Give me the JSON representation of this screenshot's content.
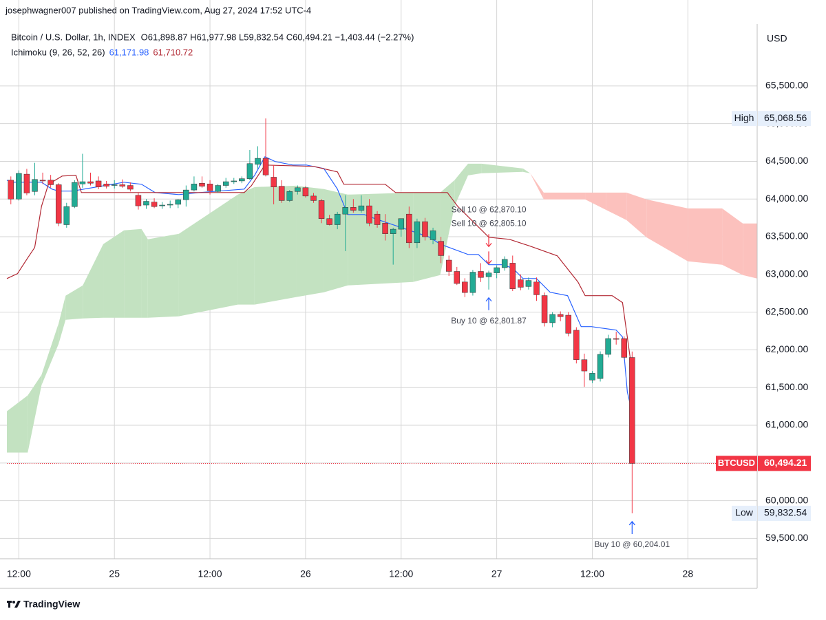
{
  "header": {
    "published": "josephwagner007 published on TradingView.com, Aug 27, 2024 17:52 UTC-4"
  },
  "chart_data": {
    "type": "candlestick",
    "title": "Bitcoin / U.S. Dollar, 1h, INDEX",
    "ohlc_legend": "O61,898.87 H61,977.98 L59,832.54 C60,494.21 −1,403.44 (−2.27%)",
    "currency": "USD",
    "symbol": "BTCUSD",
    "x": [
      -1,
      0,
      1,
      2,
      3,
      4,
      5,
      6,
      7,
      8,
      9,
      10,
      11,
      12,
      13,
      14,
      15,
      16,
      17,
      18,
      19,
      20,
      21,
      22,
      23,
      24,
      25,
      26,
      27,
      28,
      29,
      30,
      31,
      32,
      33,
      34,
      35,
      36,
      37,
      38,
      39,
      40,
      41,
      42,
      43,
      44,
      45,
      46,
      47,
      48,
      49,
      50,
      51,
      52,
      53,
      54,
      55,
      56,
      57,
      58,
      59,
      60,
      61,
      62,
      63,
      64,
      65,
      66,
      67,
      68,
      69,
      70,
      71,
      72,
      73,
      74,
      75,
      76,
      77
    ],
    "open": [
      64250,
      64000,
      64330,
      64100,
      64250,
      64250,
      64190,
      63660,
      63900,
      64200,
      64230,
      64240,
      64200,
      64180,
      64190,
      64180,
      64050,
      63920,
      63960,
      63910,
      63920,
      63930,
      63990,
      64120,
      64210,
      64200,
      64100,
      64180,
      64230,
      64240,
      64270,
      64460,
      64540,
      64290,
      64170,
      63980,
      64100,
      64150,
      64040,
      63980,
      63740,
      63660,
      63800,
      63890,
      63850,
      63910,
      63800,
      63680,
      63540,
      63600,
      63800,
      63420,
      63700,
      63460,
      63440,
      63190,
      63040,
      62900,
      62760,
      63040,
      62970,
      63020,
      63090,
      63150,
      62930,
      62840,
      62900,
      62720,
      62360,
      62470,
      62460,
      62260,
      61870,
      61600,
      61620,
      61940,
      62150,
      62150,
      61898.87
    ],
    "high": [
      64300,
      64380,
      64400,
      64480,
      64350,
      64320,
      64210,
      63950,
      64250,
      64600,
      64350,
      64300,
      64240,
      64250,
      64260,
      64220,
      64080,
      64000,
      64010,
      63960,
      63980,
      64000,
      64180,
      64300,
      64300,
      64250,
      64200,
      64280,
      64280,
      64300,
      64650,
      64700,
      65068.56,
      64450,
      64250,
      64120,
      64180,
      64170,
      64080,
      64000,
      63790,
      63830,
      64050,
      64000,
      64050,
      64000,
      63840,
      63800,
      63620,
      63740,
      63900,
      63740,
      63750,
      63620,
      63500,
      63250,
      63100,
      62950,
      63060,
      63150,
      63050,
      63120,
      63240,
      63250,
      63000,
      62960,
      62960,
      62760,
      62500,
      62510,
      62500,
      62300,
      61950,
      61720,
      61980,
      62200,
      62240,
      62180,
      61977.98
    ],
    "low": [
      63930,
      63980,
      64050,
      64050,
      64200,
      64150,
      63640,
      63620,
      63880,
      64150,
      64180,
      64130,
      64140,
      64140,
      64150,
      64100,
      63860,
      63870,
      63880,
      63870,
      63880,
      63880,
      63900,
      64100,
      64150,
      64060,
      64080,
      64150,
      64200,
      64210,
      64250,
      64400,
      64300,
      63930,
      63950,
      63960,
      64060,
      64020,
      63950,
      63680,
      63650,
      63600,
      63310,
      63820,
      63820,
      63640,
      63620,
      63450,
      63130,
      63500,
      63350,
      63350,
      63450,
      63400,
      63150,
      62980,
      62860,
      62700,
      62720,
      62900,
      62800,
      62950,
      63050,
      62780,
      62790,
      62800,
      62650,
      62310,
      62300,
      62380,
      62180,
      61820,
      61510,
      61560,
      61580,
      61900,
      62070,
      61880,
      59832.54
    ],
    "close": [
      64000,
      64340,
      64080,
      64260,
      64240,
      64190,
      63680,
      63900,
      64220,
      64230,
      64210,
      64160,
      64170,
      64190,
      64170,
      64130,
      63910,
      63970,
      63900,
      63920,
      63930,
      63990,
      64120,
      64200,
      64170,
      64110,
      64180,
      64230,
      64240,
      64270,
      64470,
      64540,
      64320,
      64160,
      63980,
      64100,
      64150,
      64040,
      63980,
      63740,
      63660,
      63800,
      63890,
      63850,
      63910,
      63680,
      63660,
      63540,
      63600,
      63740,
      63420,
      63700,
      63500,
      63580,
      63250,
      63040,
      62880,
      62760,
      63030,
      62960,
      63020,
      63090,
      63200,
      62810,
      62830,
      62920,
      62730,
      62360,
      62470,
      62440,
      62220,
      61870,
      61720,
      61690,
      61940,
      62150,
      62140,
      61900,
      60494.21
    ],
    "up_color": "#22ab94",
    "down_color": "#f23645",
    "last_price_label": "60,494.21",
    "high_label": "High",
    "high_value_label": "65,068.56",
    "low_label": "Low",
    "low_value_label": "59,832.54",
    "indicator": {
      "title": "Ichimoku (9, 26, 52, 26)",
      "lines": [
        {
          "color": "#2962ff",
          "last_label": "61,171.98",
          "x": [
            -1.5,
            -0.6,
            2.85,
            4.15,
            5.0,
            6.74,
            13.2,
            15.4,
            17.1,
            20.1,
            22.7,
            28.3,
            29.6,
            30.9,
            32.2,
            34.4,
            36.1,
            38.3,
            40.0,
            41.3,
            43.4,
            44.7,
            47.8,
            51.6,
            52.9,
            56.4,
            57.7,
            59.0,
            60.7,
            62.0,
            63.3,
            65.0,
            66.7,
            68.9,
            70.6,
            71.9,
            75.0,
            75.8,
            76.4,
            77
          ],
          "values": [
            64250,
            64223,
            64223,
            64132,
            64105,
            64105,
            64223,
            64196,
            64086,
            64059,
            64086,
            64132,
            64314,
            64561,
            64497,
            64451,
            64451,
            64405,
            64132,
            63794,
            63794,
            63740,
            63630,
            63493,
            63402,
            63265,
            63265,
            63129,
            63129,
            63083,
            62946,
            62946,
            62764,
            62718,
            62308,
            62308,
            62262,
            62171,
            61441,
            61171.98
          ]
        },
        {
          "color": "#b22833",
          "last_label": "61,710.72",
          "x": [
            -1.5,
            -0.17,
            1.12,
            1.99,
            2.85,
            3.71,
            5.44,
            7.17,
            7.86,
            28.3,
            29.2,
            30.9,
            37.0,
            40.0,
            40.8,
            46.0,
            47.3,
            53.8,
            55.1,
            59.0,
            61.6,
            64.2,
            67.6,
            70.2,
            71.1,
            74.5,
            75.8,
            77
          ],
          "values": [
            62946,
            63010,
            63220,
            63357,
            63904,
            64196,
            64305,
            64314,
            64086,
            64086,
            64177,
            64451,
            64433,
            64360,
            64196,
            64196,
            64086,
            64086,
            63904,
            63493,
            63466,
            63375,
            63247,
            62901,
            62718,
            62718,
            62627,
            61710.72
          ]
        }
      ],
      "cloud": {
        "up_color": "#c3e2c1",
        "down_color": "#fcc1bd",
        "x": [
          -1.5,
          1.12,
          2.85,
          5.0,
          5.87,
          8.03,
          10.6,
          13.2,
          15.4,
          16.2,
          20.1,
          27.5,
          29.6,
          34.8,
          38.3,
          41.3,
          49.5,
          52.9,
          54.7,
          56.4,
          58.1,
          63.3,
          64.2,
          65.9,
          71.1,
          73.7,
          76.3,
          78.8,
          84.0,
          88.3,
          90.9,
          92.7
        ],
        "span_a": [
          61186,
          61396,
          61669,
          62353,
          62718,
          62855,
          63402,
          63585,
          63603,
          63466,
          63539,
          64059,
          64159,
          64177,
          64132,
          64059,
          64086,
          64086,
          64250,
          64469,
          64469,
          64405,
          64342,
          63995,
          63995,
          63858,
          63721,
          63493,
          63174,
          63129,
          62992,
          62946
        ],
        "span_b": [
          60639,
          60639,
          61532,
          62080,
          62399,
          62417,
          62426,
          62426,
          62426,
          62426,
          62445,
          62600,
          62600,
          62700,
          62764,
          62855,
          62901,
          62992,
          63904,
          64314,
          64342,
          64360,
          64342,
          64086,
          64086,
          64086,
          64086,
          63995,
          63876,
          63876,
          63676,
          63676
        ]
      }
    },
    "annotations": [
      {
        "text": "Sell 10 @ 62,870.10",
        "x": 59,
        "side": "sell"
      },
      {
        "text": "Sell 10 @ 62,805.10",
        "x": 59,
        "side": "sell"
      },
      {
        "text": "Buy 10 @ 62,801.87",
        "x": 59,
        "side": "buy"
      },
      {
        "text": "Buy 10 @ 60,204.01",
        "x": 77,
        "side": "buy"
      }
    ],
    "xlim": [
      -1.5,
      92.7
    ],
    "ylim": [
      59230,
      66320
    ],
    "xticks": [
      {
        "value": 0,
        "label": "12:00"
      },
      {
        "value": 12,
        "label": "25"
      },
      {
        "value": 24,
        "label": "12:00"
      },
      {
        "value": 36,
        "label": "26"
      },
      {
        "value": 48,
        "label": "12:00"
      },
      {
        "value": 60,
        "label": "27"
      },
      {
        "value": 72,
        "label": "12:00"
      },
      {
        "value": 84,
        "label": "28"
      }
    ],
    "yticks": [
      {
        "value": 59500,
        "label": "59,500.00"
      },
      {
        "value": 60000,
        "label": "60,000.00"
      },
      {
        "value": 60500,
        "label": "60,500.00"
      },
      {
        "value": 61000,
        "label": "61,000.00"
      },
      {
        "value": 61500,
        "label": "61,500.00"
      },
      {
        "value": 62000,
        "label": "62,000.00"
      },
      {
        "value": 62500,
        "label": "62,500.00"
      },
      {
        "value": 63000,
        "label": "63,000.00"
      },
      {
        "value": 63500,
        "label": "63,500.00"
      },
      {
        "value": 64000,
        "label": "64,000.00"
      },
      {
        "value": 64500,
        "label": "64,500.00"
      },
      {
        "value": 65000,
        "label": "65,000.00"
      },
      {
        "value": 65500,
        "label": "65,500.00"
      }
    ],
    "grid": true
  },
  "footer": {
    "brand": "TradingView"
  }
}
